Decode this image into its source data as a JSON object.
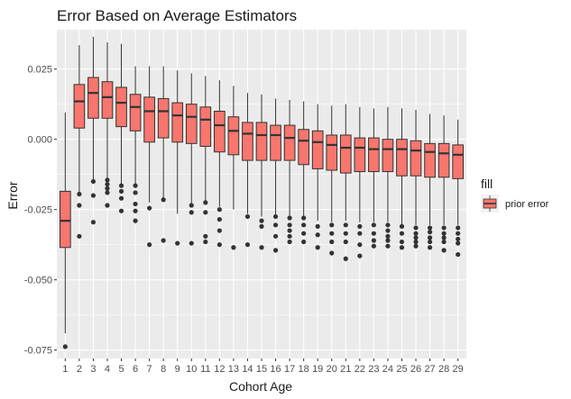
{
  "colors": {
    "panel_background": "#EBEBEB",
    "grid_major": "#FFFFFF",
    "box_fill": "#F8766D",
    "box_line": "#333333",
    "outlier": "#333333"
  },
  "chart_data": {
    "type": "boxplot",
    "title": "Error Based on Average Estimators",
    "xlabel": "Cohort Age",
    "ylabel": "Error",
    "ylim": [
      -0.078,
      0.039
    ],
    "yticks": [
      -0.075,
      -0.05,
      -0.025,
      0.0,
      0.025
    ],
    "ytick_labels": [
      "-0.075",
      "-0.050",
      "-0.025",
      "0.000",
      "0.025"
    ],
    "grid": true,
    "legend": {
      "title": "fill",
      "entries": [
        "prior error"
      ],
      "position": "right"
    },
    "categories": [
      "1",
      "2",
      "3",
      "4",
      "5",
      "6",
      "7",
      "8",
      "9",
      "10",
      "11",
      "12",
      "13",
      "14",
      "15",
      "16",
      "17",
      "18",
      "19",
      "20",
      "21",
      "22",
      "23",
      "24",
      "25",
      "26",
      "27",
      "28",
      "29"
    ],
    "series": [
      {
        "name": "prior error",
        "boxes": [
          {
            "whisker_low": -0.069,
            "q1": -0.0385,
            "median": -0.029,
            "q3": -0.0185,
            "whisker_high": 0.0095,
            "outliers": [
              -0.0738
            ]
          },
          {
            "whisker_low": -0.0195,
            "q1": 0.004,
            "median": 0.0135,
            "q3": 0.0195,
            "whisker_high": 0.0335,
            "outliers": [
              -0.0195,
              -0.0235,
              -0.0345
            ]
          },
          {
            "whisker_low": -0.015,
            "q1": 0.0075,
            "median": 0.0165,
            "q3": 0.022,
            "whisker_high": 0.0365,
            "outliers": [
              -0.015,
              -0.02,
              -0.0295
            ]
          },
          {
            "whisker_low": -0.0145,
            "q1": 0.0075,
            "median": 0.015,
            "q3": 0.0205,
            "whisker_high": 0.0345,
            "outliers": [
              -0.0145,
              -0.016,
              -0.0175,
              -0.019,
              -0.0235
            ]
          },
          {
            "whisker_low": -0.0165,
            "q1": 0.0045,
            "median": 0.013,
            "q3": 0.0185,
            "whisker_high": 0.034,
            "outliers": [
              -0.0165,
              -0.0185,
              -0.021,
              -0.0255
            ]
          },
          {
            "whisker_low": -0.0165,
            "q1": 0.003,
            "median": 0.0115,
            "q3": 0.016,
            "whisker_high": 0.026,
            "outliers": [
              -0.0165,
              -0.019,
              -0.023,
              -0.0255,
              -0.029
            ]
          },
          {
            "whisker_low": -0.0225,
            "q1": -0.001,
            "median": 0.01,
            "q3": 0.015,
            "whisker_high": 0.026,
            "outliers": [
              -0.0245,
              -0.0375
            ]
          },
          {
            "whisker_low": -0.0215,
            "q1": 0.0005,
            "median": 0.01,
            "q3": 0.0145,
            "whisker_high": 0.026,
            "outliers": [
              -0.0215,
              -0.036
            ]
          },
          {
            "whisker_low": -0.0265,
            "q1": -0.001,
            "median": 0.0085,
            "q3": 0.013,
            "whisker_high": 0.0245,
            "outliers": [
              -0.037
            ]
          },
          {
            "whisker_low": -0.023,
            "q1": -0.0015,
            "median": 0.008,
            "q3": 0.0125,
            "whisker_high": 0.0235,
            "outliers": [
              -0.0235,
              -0.026,
              -0.037
            ]
          },
          {
            "whisker_low": -0.0225,
            "q1": -0.0025,
            "median": 0.007,
            "q3": 0.0115,
            "whisker_high": 0.0225,
            "outliers": [
              -0.0225,
              -0.026,
              -0.0345,
              -0.0365
            ]
          },
          {
            "whisker_low": -0.024,
            "q1": -0.0045,
            "median": 0.005,
            "q3": 0.01,
            "whisker_high": 0.021,
            "outliers": [
              -0.025,
              -0.0285,
              -0.0325,
              -0.0375
            ]
          },
          {
            "whisker_low": -0.025,
            "q1": -0.0055,
            "median": 0.003,
            "q3": 0.008,
            "whisker_high": 0.019,
            "outliers": [
              -0.0385
            ]
          },
          {
            "whisker_low": -0.0265,
            "q1": -0.0075,
            "median": 0.002,
            "q3": 0.006,
            "whisker_high": 0.0165,
            "outliers": [
              -0.0275,
              -0.0375
            ]
          },
          {
            "whisker_low": -0.0275,
            "q1": -0.0075,
            "median": 0.0015,
            "q3": 0.006,
            "whisker_high": 0.016,
            "outliers": [
              -0.029,
              -0.031,
              -0.0385
            ]
          },
          {
            "whisker_low": -0.0275,
            "q1": -0.0075,
            "median": 0.0015,
            "q3": 0.005,
            "whisker_high": 0.0145,
            "outliers": [
              -0.0275,
              -0.0305,
              -0.0345,
              -0.0395
            ]
          },
          {
            "whisker_low": -0.0275,
            "q1": -0.0075,
            "median": 0.0005,
            "q3": 0.005,
            "whisker_high": 0.014,
            "outliers": [
              -0.028,
              -0.0305,
              -0.0325,
              -0.0345,
              -0.0365
            ]
          },
          {
            "whisker_low": -0.0275,
            "q1": -0.009,
            "median": -0.0005,
            "q3": 0.0035,
            "whisker_high": 0.0135,
            "outliers": [
              -0.028,
              -0.0305,
              -0.0335,
              -0.0365
            ]
          },
          {
            "whisker_low": -0.029,
            "q1": -0.0105,
            "median": -0.001,
            "q3": 0.003,
            "whisker_high": 0.0125,
            "outliers": [
              -0.031,
              -0.034,
              -0.0385
            ]
          },
          {
            "whisker_low": -0.0295,
            "q1": -0.011,
            "median": -0.002,
            "q3": 0.0015,
            "whisker_high": 0.012,
            "outliers": [
              -0.0305,
              -0.0335,
              -0.0365,
              -0.0405
            ]
          },
          {
            "whisker_low": -0.029,
            "q1": -0.012,
            "median": -0.003,
            "q3": 0.0015,
            "whisker_high": 0.0125,
            "outliers": [
              -0.0305,
              -0.0335,
              -0.0365,
              -0.0425
            ]
          },
          {
            "whisker_low": -0.0295,
            "q1": -0.0115,
            "median": -0.003,
            "q3": 0.0005,
            "whisker_high": 0.0115,
            "outliers": [
              -0.031,
              -0.0335,
              -0.0375,
              -0.0415
            ]
          },
          {
            "whisker_low": -0.0295,
            "q1": -0.0115,
            "median": -0.0035,
            "q3": 0.0005,
            "whisker_high": 0.011,
            "outliers": [
              -0.0305,
              -0.0335,
              -0.036,
              -0.038
            ]
          },
          {
            "whisker_low": -0.0295,
            "q1": -0.0115,
            "median": -0.0035,
            "q3": 0.0,
            "whisker_high": 0.0115,
            "outliers": [
              -0.0305,
              -0.0325,
              -0.0345,
              -0.036,
              -0.038
            ]
          },
          {
            "whisker_low": -0.0305,
            "q1": -0.013,
            "median": -0.0035,
            "q3": 0.0,
            "whisker_high": 0.011,
            "outliers": [
              -0.031,
              -0.0335,
              -0.0365,
              -0.0385
            ]
          },
          {
            "whisker_low": -0.0305,
            "q1": -0.013,
            "median": -0.004,
            "q3": -0.0005,
            "whisker_high": 0.0105,
            "outliers": [
              -0.0315,
              -0.0335,
              -0.035,
              -0.0365,
              -0.038
            ]
          },
          {
            "whisker_low": -0.0305,
            "q1": -0.0135,
            "median": -0.0045,
            "q3": -0.0015,
            "whisker_high": 0.009,
            "outliers": [
              -0.0315,
              -0.033,
              -0.035,
              -0.0365,
              -0.0385
            ]
          },
          {
            "whisker_low": -0.0305,
            "q1": -0.0135,
            "median": -0.005,
            "q3": -0.0015,
            "whisker_high": 0.0085,
            "outliers": [
              -0.0315,
              -0.0335,
              -0.035,
              -0.0365,
              -0.0395
            ]
          },
          {
            "whisker_low": -0.0305,
            "q1": -0.014,
            "median": -0.0055,
            "q3": -0.002,
            "whisker_high": 0.007,
            "outliers": [
              -0.0315,
              -0.0335,
              -0.0355,
              -0.037,
              -0.041
            ]
          }
        ]
      }
    ]
  }
}
